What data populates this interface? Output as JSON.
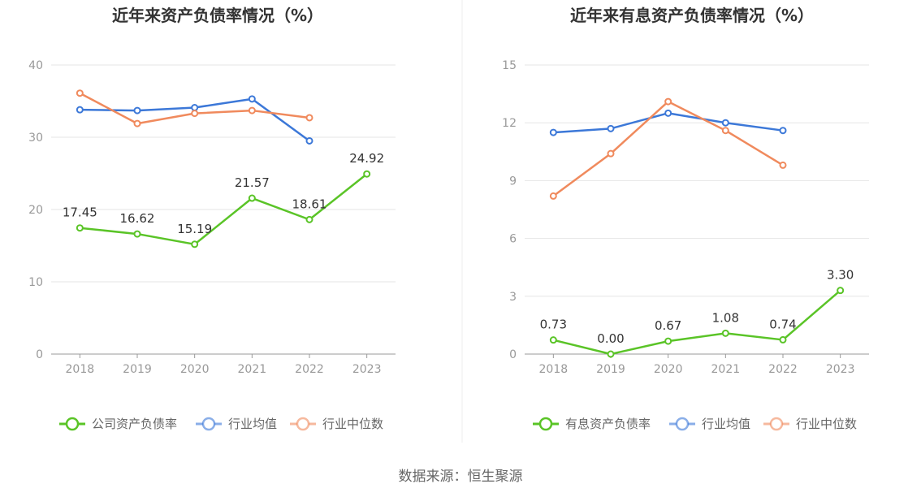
{
  "source": "数据来源：恒生聚源",
  "colors": {
    "company": "#5ac427",
    "avg": "#3c78d8",
    "median": "#f08a5d",
    "grid": "#e6e6e6",
    "axis": "#999999"
  },
  "chart_data": [
    {
      "type": "line",
      "title": "近年来资产负债率情况（%）",
      "categories": [
        "2018",
        "2019",
        "2020",
        "2021",
        "2022",
        "2023"
      ],
      "ylim": [
        0,
        40
      ],
      "yticks": [
        0,
        10,
        20,
        30,
        40
      ],
      "series": [
        {
          "name": "公司资产负债率",
          "values": [
            17.45,
            16.62,
            15.19,
            21.57,
            18.61,
            24.92
          ],
          "labels": [
            "17.45",
            "16.62",
            "15.19",
            "21.57",
            "18.61",
            "24.92"
          ],
          "color": "#5ac427"
        },
        {
          "name": "行业均值",
          "values": [
            33.8,
            33.7,
            34.1,
            35.3,
            29.5,
            null
          ],
          "color": "#3c78d8"
        },
        {
          "name": "行业中位数",
          "values": [
            36.1,
            31.9,
            33.3,
            33.7,
            32.7,
            null
          ],
          "color": "#f08a5d"
        }
      ],
      "grid": true,
      "legend": "bottom"
    },
    {
      "type": "line",
      "title": "近年来有息资产负债率情况（%）",
      "categories": [
        "2018",
        "2019",
        "2020",
        "2021",
        "2022",
        "2023"
      ],
      "ylim": [
        0,
        15
      ],
      "yticks": [
        0,
        3,
        6,
        9,
        12,
        15
      ],
      "series": [
        {
          "name": "有息资产负债率",
          "values": [
            0.73,
            0.0,
            0.67,
            1.08,
            0.74,
            3.3
          ],
          "labels": [
            "0.73",
            "0.00",
            "0.67",
            "1.08",
            "0.74",
            "3.30"
          ],
          "color": "#5ac427"
        },
        {
          "name": "行业均值",
          "values": [
            11.5,
            11.7,
            12.5,
            12.0,
            11.6,
            null
          ],
          "color": "#3c78d8"
        },
        {
          "name": "行业中位数",
          "values": [
            8.2,
            10.4,
            13.1,
            11.6,
            9.8,
            null
          ],
          "color": "#f08a5d"
        }
      ],
      "grid": true,
      "legend": "bottom"
    }
  ]
}
